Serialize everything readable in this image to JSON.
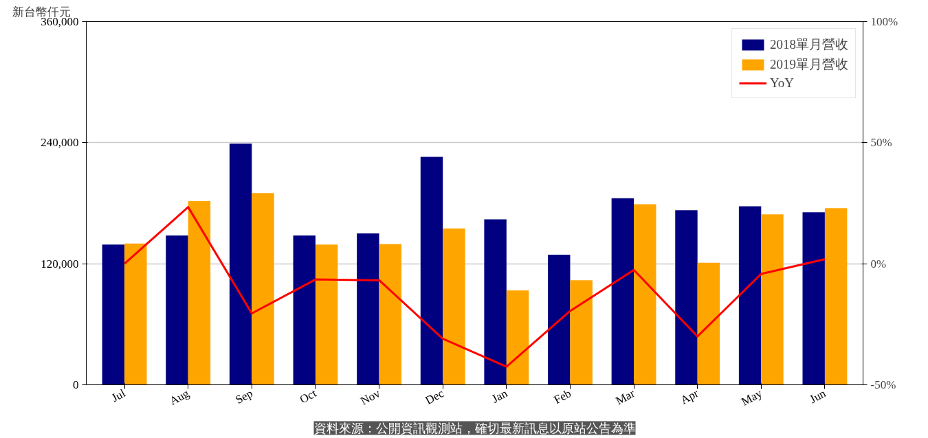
{
  "chart_data": {
    "type": "bar",
    "ylabel": "新台幣仟元",
    "categories": [
      "Jul",
      "Aug",
      "Sep",
      "Oct",
      "Nov",
      "Dec",
      "Jan",
      "Feb",
      "Mar",
      "Apr",
      "May",
      "Jun"
    ],
    "series": [
      {
        "name": "2018單月營收",
        "color": "#000080",
        "values": [
          139000,
          148000,
          239000,
          148000,
          150000,
          226000,
          164000,
          129000,
          185000,
          173000,
          177000,
          171000
        ]
      },
      {
        "name": "2019單月營收",
        "color": "#ffa500",
        "values": [
          140000,
          182000,
          190000,
          139000,
          139500,
          155000,
          93500,
          103600,
          179000,
          121000,
          169000,
          175000
        ]
      },
      {
        "name": "YoY",
        "type": "line",
        "axis": "y2",
        "color": "#ff0000",
        "marker": "none",
        "values": [
          0,
          23.4,
          -20.5,
          -6.5,
          -6.8,
          -31,
          -42.5,
          -19.5,
          -2.6,
          -30,
          -4.2,
          1.9
        ]
      }
    ],
    "ylim": [
      0,
      360000
    ],
    "yticks": [
      {
        "value": 0,
        "label": "0"
      },
      {
        "value": 120000,
        "label": "120,000"
      },
      {
        "value": 240000,
        "label": "240,000"
      },
      {
        "value": 360000,
        "label": "360,000"
      }
    ],
    "y2lim": [
      -50,
      100
    ],
    "y2ticks": [
      {
        "value": -50,
        "label": "-50%"
      },
      {
        "value": 0,
        "label": "0%"
      },
      {
        "value": 50,
        "label": "50%"
      },
      {
        "value": 100,
        "label": "100%"
      }
    ],
    "grid": "y",
    "legend": "top right",
    "annotations": [
      "資料來源：公開資訊觀測站，確切最新訊息以原站公告為準"
    ]
  }
}
